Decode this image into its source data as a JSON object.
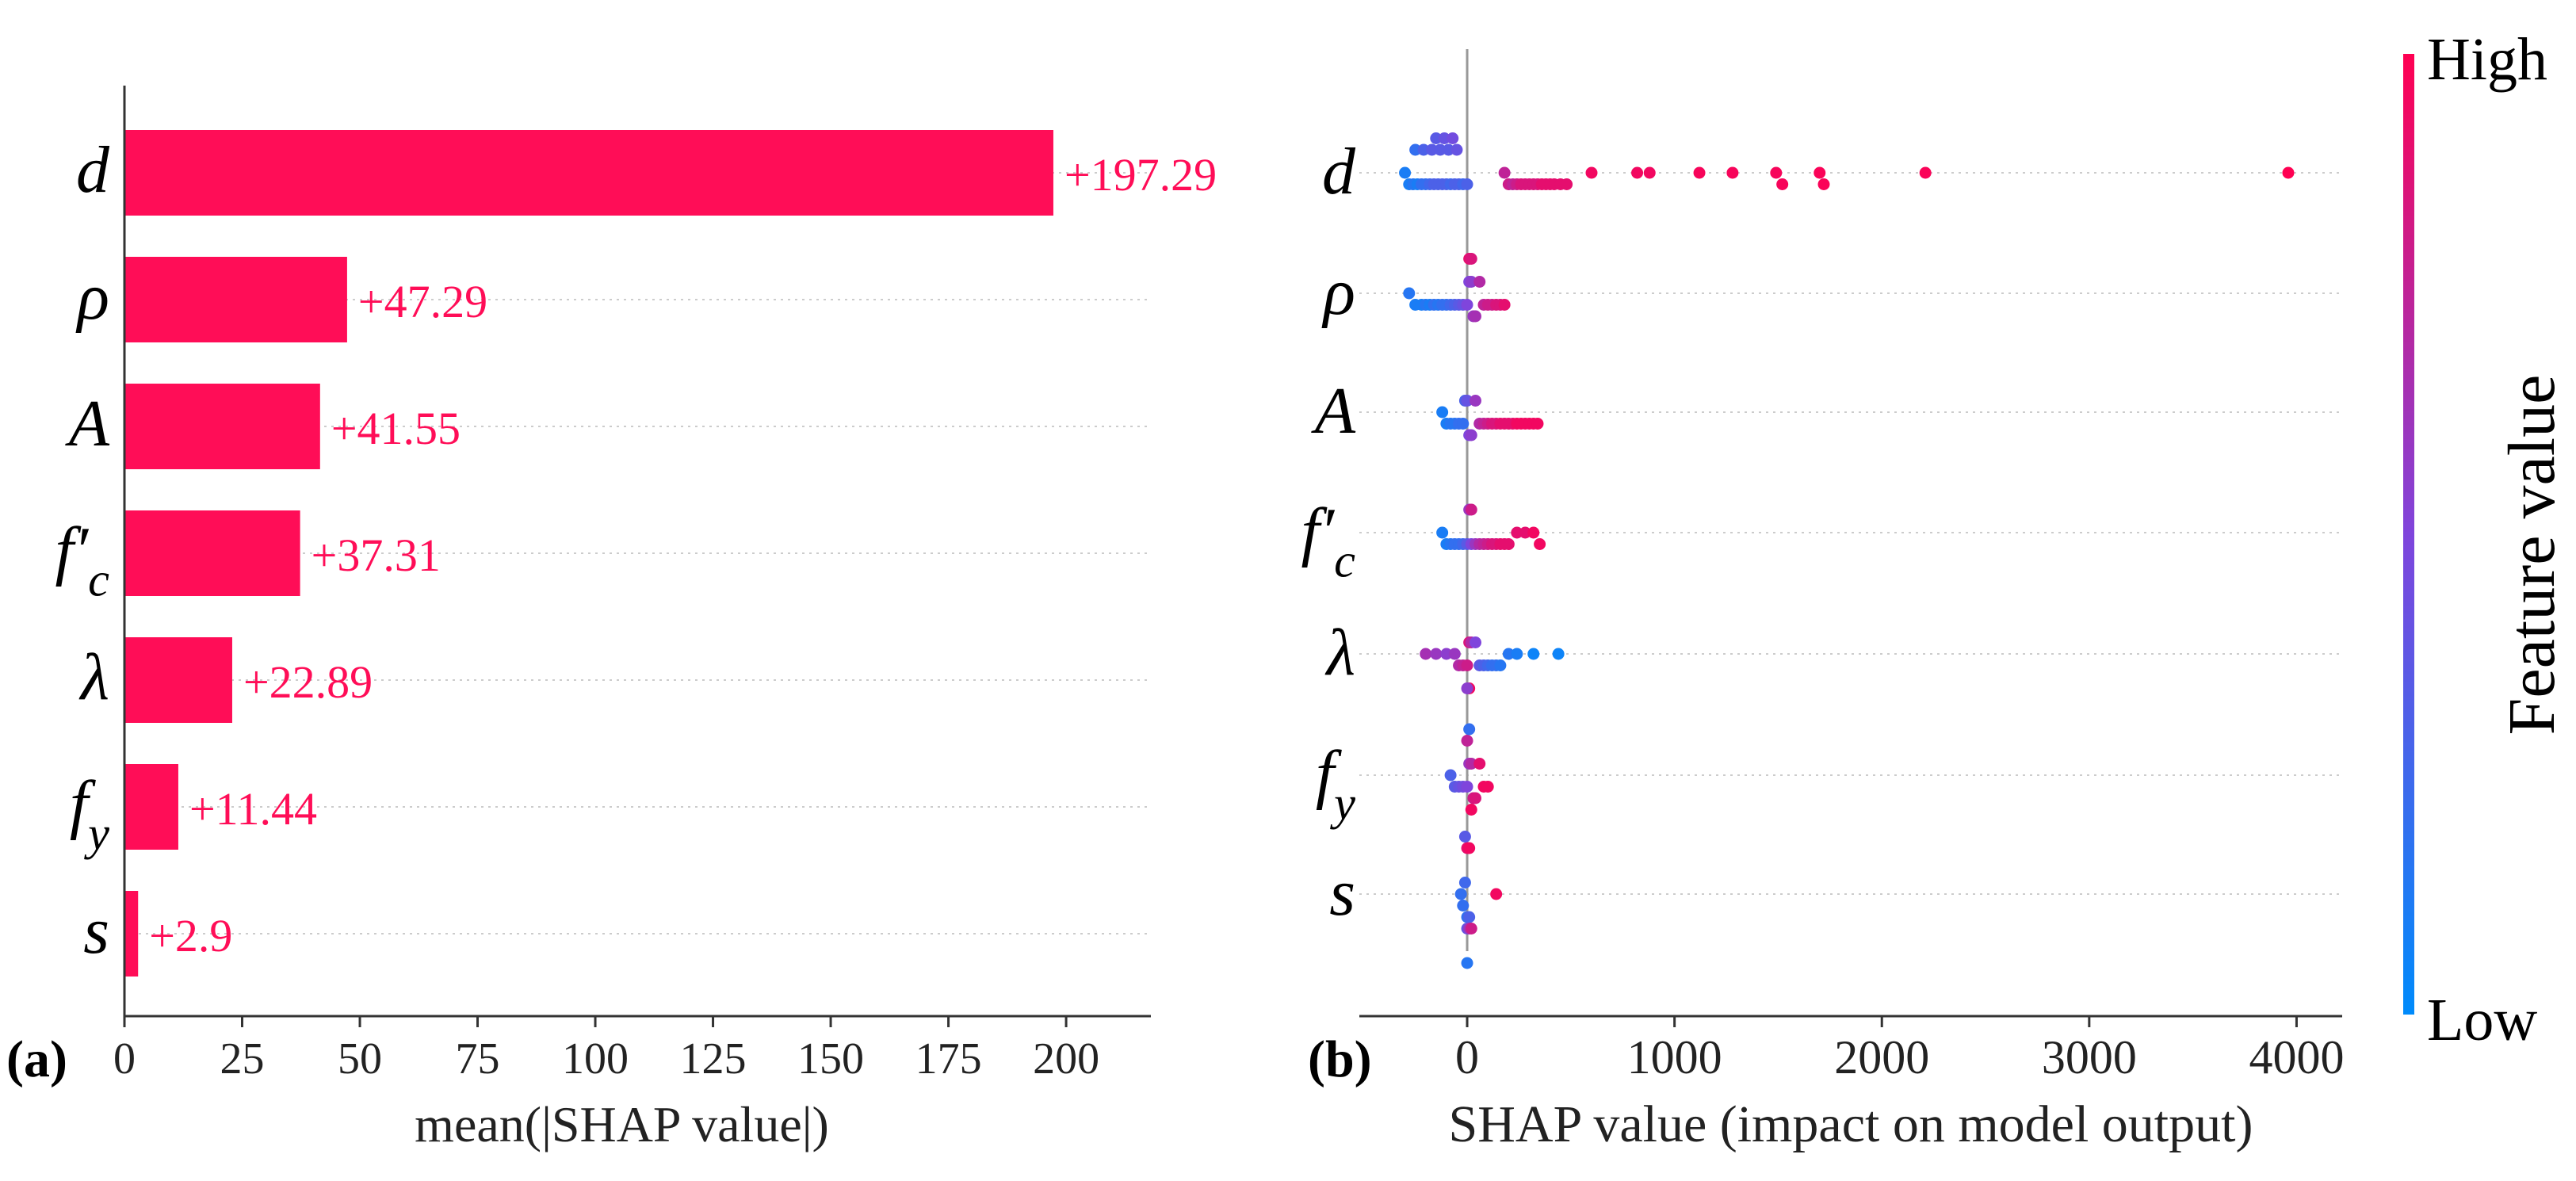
{
  "colors": {
    "bar": "#ff0d57",
    "low": "#008bfb",
    "high": "#ff0052",
    "axis": "#333333",
    "grid": "#cccccc",
    "zero_line": "#999999"
  },
  "chart_data": [
    {
      "panel": "(a)",
      "type": "bar",
      "orientation": "horizontal",
      "categories": [
        "d",
        "ρ",
        "A",
        "f′c",
        "λ",
        "fy",
        "s"
      ],
      "values": [
        197.29,
        47.29,
        41.55,
        37.31,
        22.89,
        11.44,
        2.9
      ],
      "data_labels": [
        "+197.29",
        "+47.29",
        "+41.55",
        "+37.31",
        "+22.89",
        "+11.44",
        "+2.9"
      ],
      "xlabel": "mean(|SHAP value|)",
      "ylabel": "",
      "xlim": [
        0,
        218
      ],
      "xticks": [
        0,
        25,
        50,
        75,
        100,
        125,
        150,
        175,
        200
      ],
      "grid": "dotted horizontal row lines"
    },
    {
      "panel": "(b)",
      "type": "scatter",
      "subtype": "beeswarm",
      "categories": [
        "d",
        "ρ",
        "A",
        "f′c",
        "λ",
        "fy",
        "s"
      ],
      "xlabel": "SHAP value (impact on model output)",
      "xlim": [
        -520,
        4220
      ],
      "xticks": [
        0,
        1000,
        2000,
        3000,
        4000
      ],
      "colorbar": {
        "label": "Feature value",
        "high": "High",
        "low": "Low"
      },
      "series": [
        {
          "name": "d",
          "points": [
            [
              -300,
              0.1
            ],
            [
              -280,
              0.1
            ],
            [
              -260,
              0.15
            ],
            [
              -240,
              0.1
            ],
            [
              -220,
              0.2
            ],
            [
              -200,
              0.2
            ],
            [
              -180,
              0.25
            ],
            [
              -160,
              0.3
            ],
            [
              -140,
              0.3
            ],
            [
              -120,
              0.3
            ],
            [
              -100,
              0.3
            ],
            [
              -80,
              0.25
            ],
            [
              -60,
              0.3
            ],
            [
              -40,
              0.3
            ],
            [
              -20,
              0.25
            ],
            [
              0,
              0.3
            ],
            [
              -250,
              0.2
            ],
            [
              -210,
              0.3
            ],
            [
              -170,
              0.35
            ],
            [
              -130,
              0.35
            ],
            [
              -90,
              0.35
            ],
            [
              -50,
              0.4
            ],
            [
              -150,
              0.35
            ],
            [
              -110,
              0.4
            ],
            [
              -70,
              0.45
            ],
            [
              180,
              0.75
            ],
            [
              200,
              0.8
            ],
            [
              220,
              0.75
            ],
            [
              240,
              0.8
            ],
            [
              260,
              0.85
            ],
            [
              280,
              0.85
            ],
            [
              300,
              0.85
            ],
            [
              320,
              0.85
            ],
            [
              340,
              0.85
            ],
            [
              360,
              0.9
            ],
            [
              380,
              0.9
            ],
            [
              400,
              0.9
            ],
            [
              420,
              0.9
            ],
            [
              450,
              0.9
            ],
            [
              480,
              0.9
            ],
            [
              600,
              0.95
            ],
            [
              820,
              0.95
            ],
            [
              880,
              0.95
            ],
            [
              1120,
              0.97
            ],
            [
              1280,
              0.97
            ],
            [
              1490,
              0.97
            ],
            [
              1520,
              0.97
            ],
            [
              1700,
              0.98
            ],
            [
              1720,
              0.98
            ],
            [
              2210,
              0.98
            ],
            [
              3960,
              1.0
            ]
          ]
        },
        {
          "name": "ρ",
          "points": [
            [
              -280,
              0.15
            ],
            [
              -250,
              0.1
            ],
            [
              -220,
              0.1
            ],
            [
              -200,
              0.15
            ],
            [
              -180,
              0.1
            ],
            [
              -160,
              0.2
            ],
            [
              -140,
              0.15
            ],
            [
              -120,
              0.2
            ],
            [
              -100,
              0.2
            ],
            [
              -80,
              0.25
            ],
            [
              -60,
              0.3
            ],
            [
              -40,
              0.35
            ],
            [
              -20,
              0.4
            ],
            [
              0,
              0.5
            ],
            [
              10,
              0.5
            ],
            [
              20,
              0.55
            ],
            [
              30,
              0.6
            ],
            [
              40,
              0.65
            ],
            [
              60,
              0.7
            ],
            [
              80,
              0.75
            ],
            [
              100,
              0.8
            ],
            [
              120,
              0.8
            ],
            [
              140,
              0.85
            ],
            [
              160,
              0.85
            ],
            [
              180,
              0.9
            ],
            [
              10,
              0.9
            ],
            [
              20,
              0.85
            ]
          ]
        },
        {
          "name": "A",
          "points": [
            [
              -120,
              0.1
            ],
            [
              -100,
              0.1
            ],
            [
              -80,
              0.15
            ],
            [
              -60,
              0.15
            ],
            [
              -40,
              0.2
            ],
            [
              -20,
              0.2
            ],
            [
              -10,
              0.3
            ],
            [
              0,
              0.4
            ],
            [
              10,
              0.5
            ],
            [
              20,
              0.55
            ],
            [
              40,
              0.6
            ],
            [
              60,
              0.7
            ],
            [
              80,
              0.75
            ],
            [
              100,
              0.8
            ],
            [
              120,
              0.85
            ],
            [
              140,
              0.85
            ],
            [
              160,
              0.9
            ],
            [
              180,
              0.9
            ],
            [
              200,
              0.9
            ],
            [
              220,
              0.9
            ],
            [
              240,
              0.95
            ],
            [
              260,
              0.95
            ],
            [
              280,
              0.95
            ],
            [
              300,
              0.95
            ],
            [
              320,
              0.95
            ],
            [
              340,
              0.95
            ]
          ]
        },
        {
          "name": "f′c",
          "points": [
            [
              -120,
              0.1
            ],
            [
              -100,
              0.1
            ],
            [
              -80,
              0.15
            ],
            [
              -60,
              0.2
            ],
            [
              -40,
              0.2
            ],
            [
              -20,
              0.25
            ],
            [
              0,
              0.35
            ],
            [
              20,
              0.5
            ],
            [
              40,
              0.6
            ],
            [
              60,
              0.7
            ],
            [
              80,
              0.75
            ],
            [
              100,
              0.8
            ],
            [
              120,
              0.85
            ],
            [
              140,
              0.85
            ],
            [
              160,
              0.9
            ],
            [
              180,
              0.9
            ],
            [
              200,
              0.9
            ],
            [
              240,
              0.9
            ],
            [
              280,
              0.9
            ],
            [
              320,
              0.95
            ],
            [
              350,
              0.95
            ],
            [
              10,
              0.6
            ],
            [
              20,
              0.8
            ]
          ]
        },
        {
          "name": "λ",
          "points": [
            [
              -200,
              0.65
            ],
            [
              -150,
              0.6
            ],
            [
              -100,
              0.55
            ],
            [
              -60,
              0.6
            ],
            [
              -40,
              0.7
            ],
            [
              -20,
              0.75
            ],
            [
              0,
              0.8
            ],
            [
              10,
              0.85
            ],
            [
              20,
              0.7
            ],
            [
              40,
              0.5
            ],
            [
              60,
              0.35
            ],
            [
              80,
              0.3
            ],
            [
              100,
              0.25
            ],
            [
              120,
              0.2
            ],
            [
              140,
              0.2
            ],
            [
              160,
              0.15
            ],
            [
              200,
              0.15
            ],
            [
              240,
              0.1
            ],
            [
              320,
              0.05
            ],
            [
              440,
              0.05
            ],
            [
              10,
              0.95
            ],
            [
              0,
              0.55
            ]
          ]
        },
        {
          "name": "fy",
          "points": [
            [
              -80,
              0.3
            ],
            [
              -60,
              0.35
            ],
            [
              -40,
              0.4
            ],
            [
              -20,
              0.45
            ],
            [
              0,
              0.5
            ],
            [
              10,
              0.6
            ],
            [
              20,
              0.7
            ],
            [
              30,
              0.8
            ],
            [
              40,
              0.85
            ],
            [
              60,
              0.9
            ],
            [
              80,
              0.95
            ],
            [
              100,
              0.95
            ],
            [
              20,
              0.95
            ],
            [
              0,
              0.75
            ],
            [
              10,
              0.2
            ]
          ]
        },
        {
          "name": "s",
          "points": [
            [
              -30,
              0.2
            ],
            [
              -20,
              0.2
            ],
            [
              -10,
              0.25
            ],
            [
              0,
              0.2
            ],
            [
              10,
              0.3
            ],
            [
              0,
              0.4
            ],
            [
              10,
              0.6
            ],
            [
              20,
              0.8
            ],
            [
              0,
              0.9
            ],
            [
              10,
              0.95
            ],
            [
              140,
              0.95
            ],
            [
              -10,
              0.35
            ],
            [
              0,
              0.15
            ]
          ]
        }
      ]
    }
  ]
}
